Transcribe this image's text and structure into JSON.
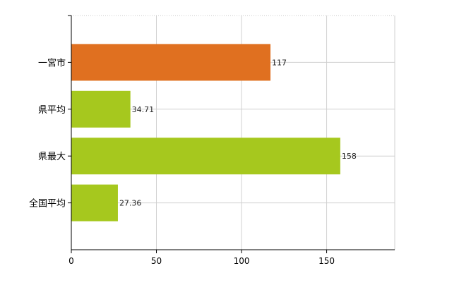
{
  "chart_data": {
    "type": "bar",
    "orientation": "horizontal",
    "title": "",
    "xlabel": "",
    "ylabel": "",
    "categories": [
      "一宮市",
      "県平均",
      "県最大",
      "全国平均"
    ],
    "values": [
      117,
      34.71,
      158,
      27.36
    ],
    "value_labels": [
      "117",
      "34.71",
      "158",
      "27.36"
    ],
    "bar_colors": [
      "#e07020",
      "#a6c81e",
      "#a6c81e",
      "#a6c81e"
    ],
    "xlim": [
      0,
      190
    ],
    "xticks": [
      0,
      50,
      100,
      150
    ],
    "xtick_labels": [
      "0",
      "50",
      "100",
      "150"
    ],
    "grid": true,
    "legend": false
  }
}
